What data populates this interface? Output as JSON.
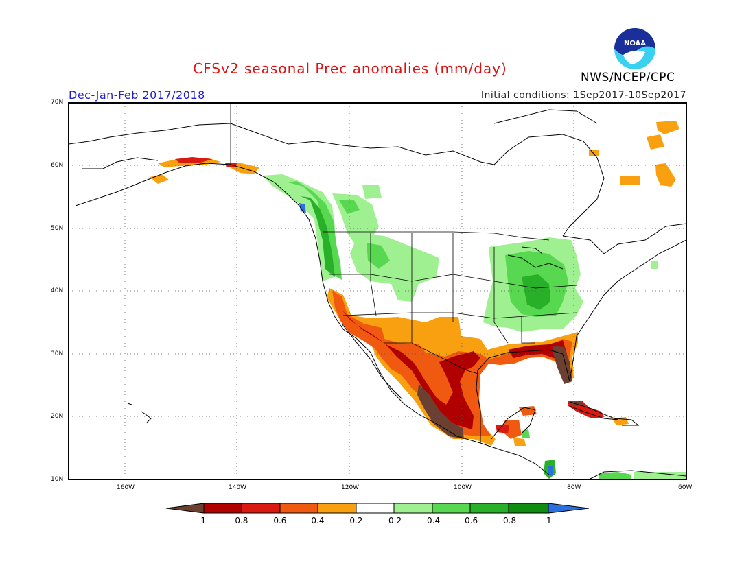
{
  "header": {
    "title": "CFSv2 seasonal Prec anomalies (mm/day)",
    "agency": "NWS/NCEP/CPC",
    "season": "Dec-Jan-Feb 2017/2018",
    "initial_conditions": "Initial conditions: 1Sep2017-10Sep2017",
    "logo_text": "NOAA"
  },
  "axes": {
    "lat_labels": [
      "70N",
      "60N",
      "50N",
      "40N",
      "30N",
      "20N",
      "10N"
    ],
    "lon_labels": [
      "160W",
      "140W",
      "120W",
      "100W",
      "80W",
      "60W"
    ]
  },
  "colorbar": {
    "labels": [
      "-1",
      "-0.8",
      "-0.6",
      "-0.4",
      "-0.2",
      "0.2",
      "0.4",
      "0.6",
      "0.8",
      "1"
    ],
    "colors": [
      "#6b4030",
      "#b00000",
      "#d81a10",
      "#f05a10",
      "#f8a010",
      "#ffffff",
      "#9ff090",
      "#58d850",
      "#28b028",
      "#108c10",
      "#2a70e0"
    ]
  }
}
